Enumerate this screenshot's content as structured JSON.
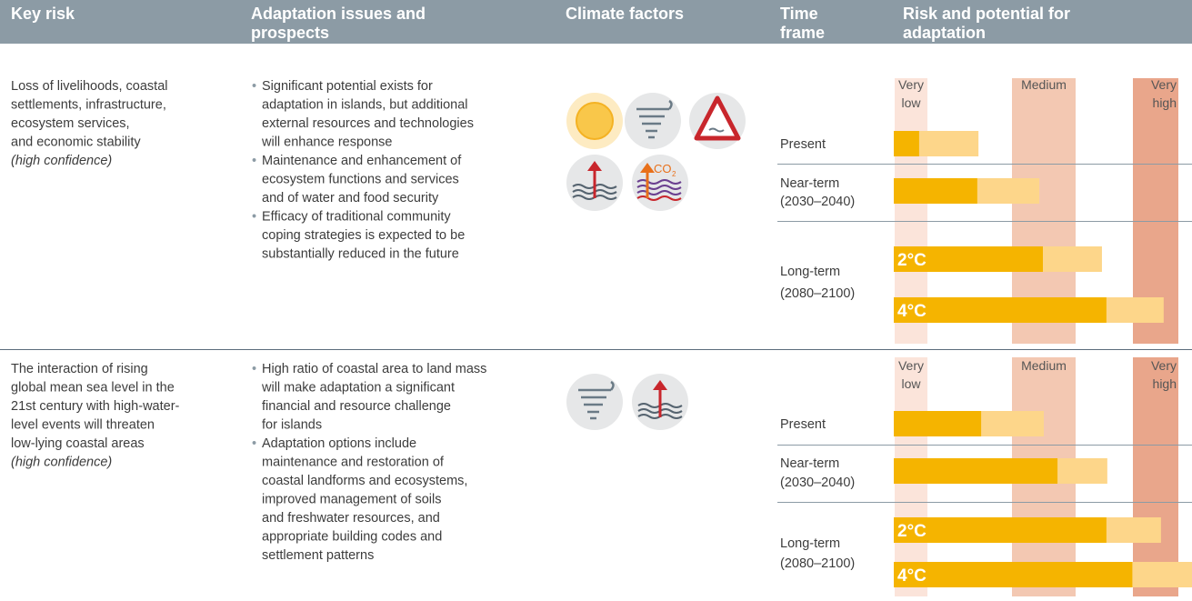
{
  "header": [
    [
      "Key risk"
    ],
    [
      "Adaptation issues and",
      "prospects"
    ],
    [
      "Climate factors"
    ],
    [
      "Time",
      "frame"
    ],
    [
      "Risk and potential for",
      "adaptation"
    ]
  ],
  "risk_levels": [
    [
      "Very",
      "low"
    ],
    [
      "Medium"
    ],
    [
      "Very",
      "high"
    ]
  ],
  "xlim": [
    0,
    100
  ],
  "rows": [
    {
      "key_risk": [
        "Loss of livelihoods, coastal",
        "settlements, infrastructure,",
        "ecosystem services,",
        "and economic stability"
      ],
      "confidence": "(high confidence)",
      "issues": [
        [
          "Significant potential exists for",
          "adaptation in islands, but additional",
          "external resources and technologies",
          "will enhance response"
        ],
        [
          "Maintenance and enhancement of",
          "ecosystem functions and services",
          "and of water and food security"
        ],
        [
          "Efficacy of traditional community",
          "coping strategies is expected to be",
          "substantially reduced in the future"
        ]
      ],
      "timeframes": [
        {
          "label": [
            "Present"
          ],
          "bars": [
            {
              "values": [
                8.5,
                28.4
              ]
            }
          ]
        },
        {
          "label": [
            "Near-term",
            "(2030–2040)"
          ],
          "bars": [
            {
              "values": [
                28,
                48.8
              ]
            }
          ]
        },
        {
          "label": [
            "Long-term",
            "(2080–2100)"
          ],
          "bars": [
            {
              "label": "2°C",
              "values": [
                50,
                69.8
              ]
            },
            {
              "label": "4°C",
              "values": [
                71.3,
                90.5
              ]
            }
          ]
        }
      ]
    },
    {
      "key_risk": [
        "The interaction of rising",
        "global mean sea level in the",
        "21st century with high-water-",
        "level events will threaten",
        "low-lying coastal areas"
      ],
      "confidence": "(high confidence)",
      "issues": [
        [
          "High ratio of coastal area to land mass",
          "will make adaptation a significant",
          "financial and resource challenge",
          "for islands"
        ],
        [
          "Adaptation options include",
          "maintenance and restoration of",
          "coastal landforms and ecosystems,",
          "improved management of soils",
          "and freshwater resources, and",
          "appropriate building codes and",
          "settlement patterns"
        ]
      ],
      "timeframes": [
        {
          "label": [
            "Present"
          ],
          "bars": [
            {
              "values": [
                29.3,
                50.3
              ]
            }
          ]
        },
        {
          "label": [
            "Near-term",
            "(2030–2040)"
          ],
          "bars": [
            {
              "values": [
                54.9,
                71.6
              ]
            }
          ]
        },
        {
          "label": [
            "Long-term",
            "(2080–2100)"
          ],
          "bars": [
            {
              "label": "2°C",
              "values": [
                71.3,
                89.6
              ]
            },
            {
              "label": "4°C",
              "values": [
                80,
                100
              ]
            }
          ]
        }
      ]
    }
  ]
}
